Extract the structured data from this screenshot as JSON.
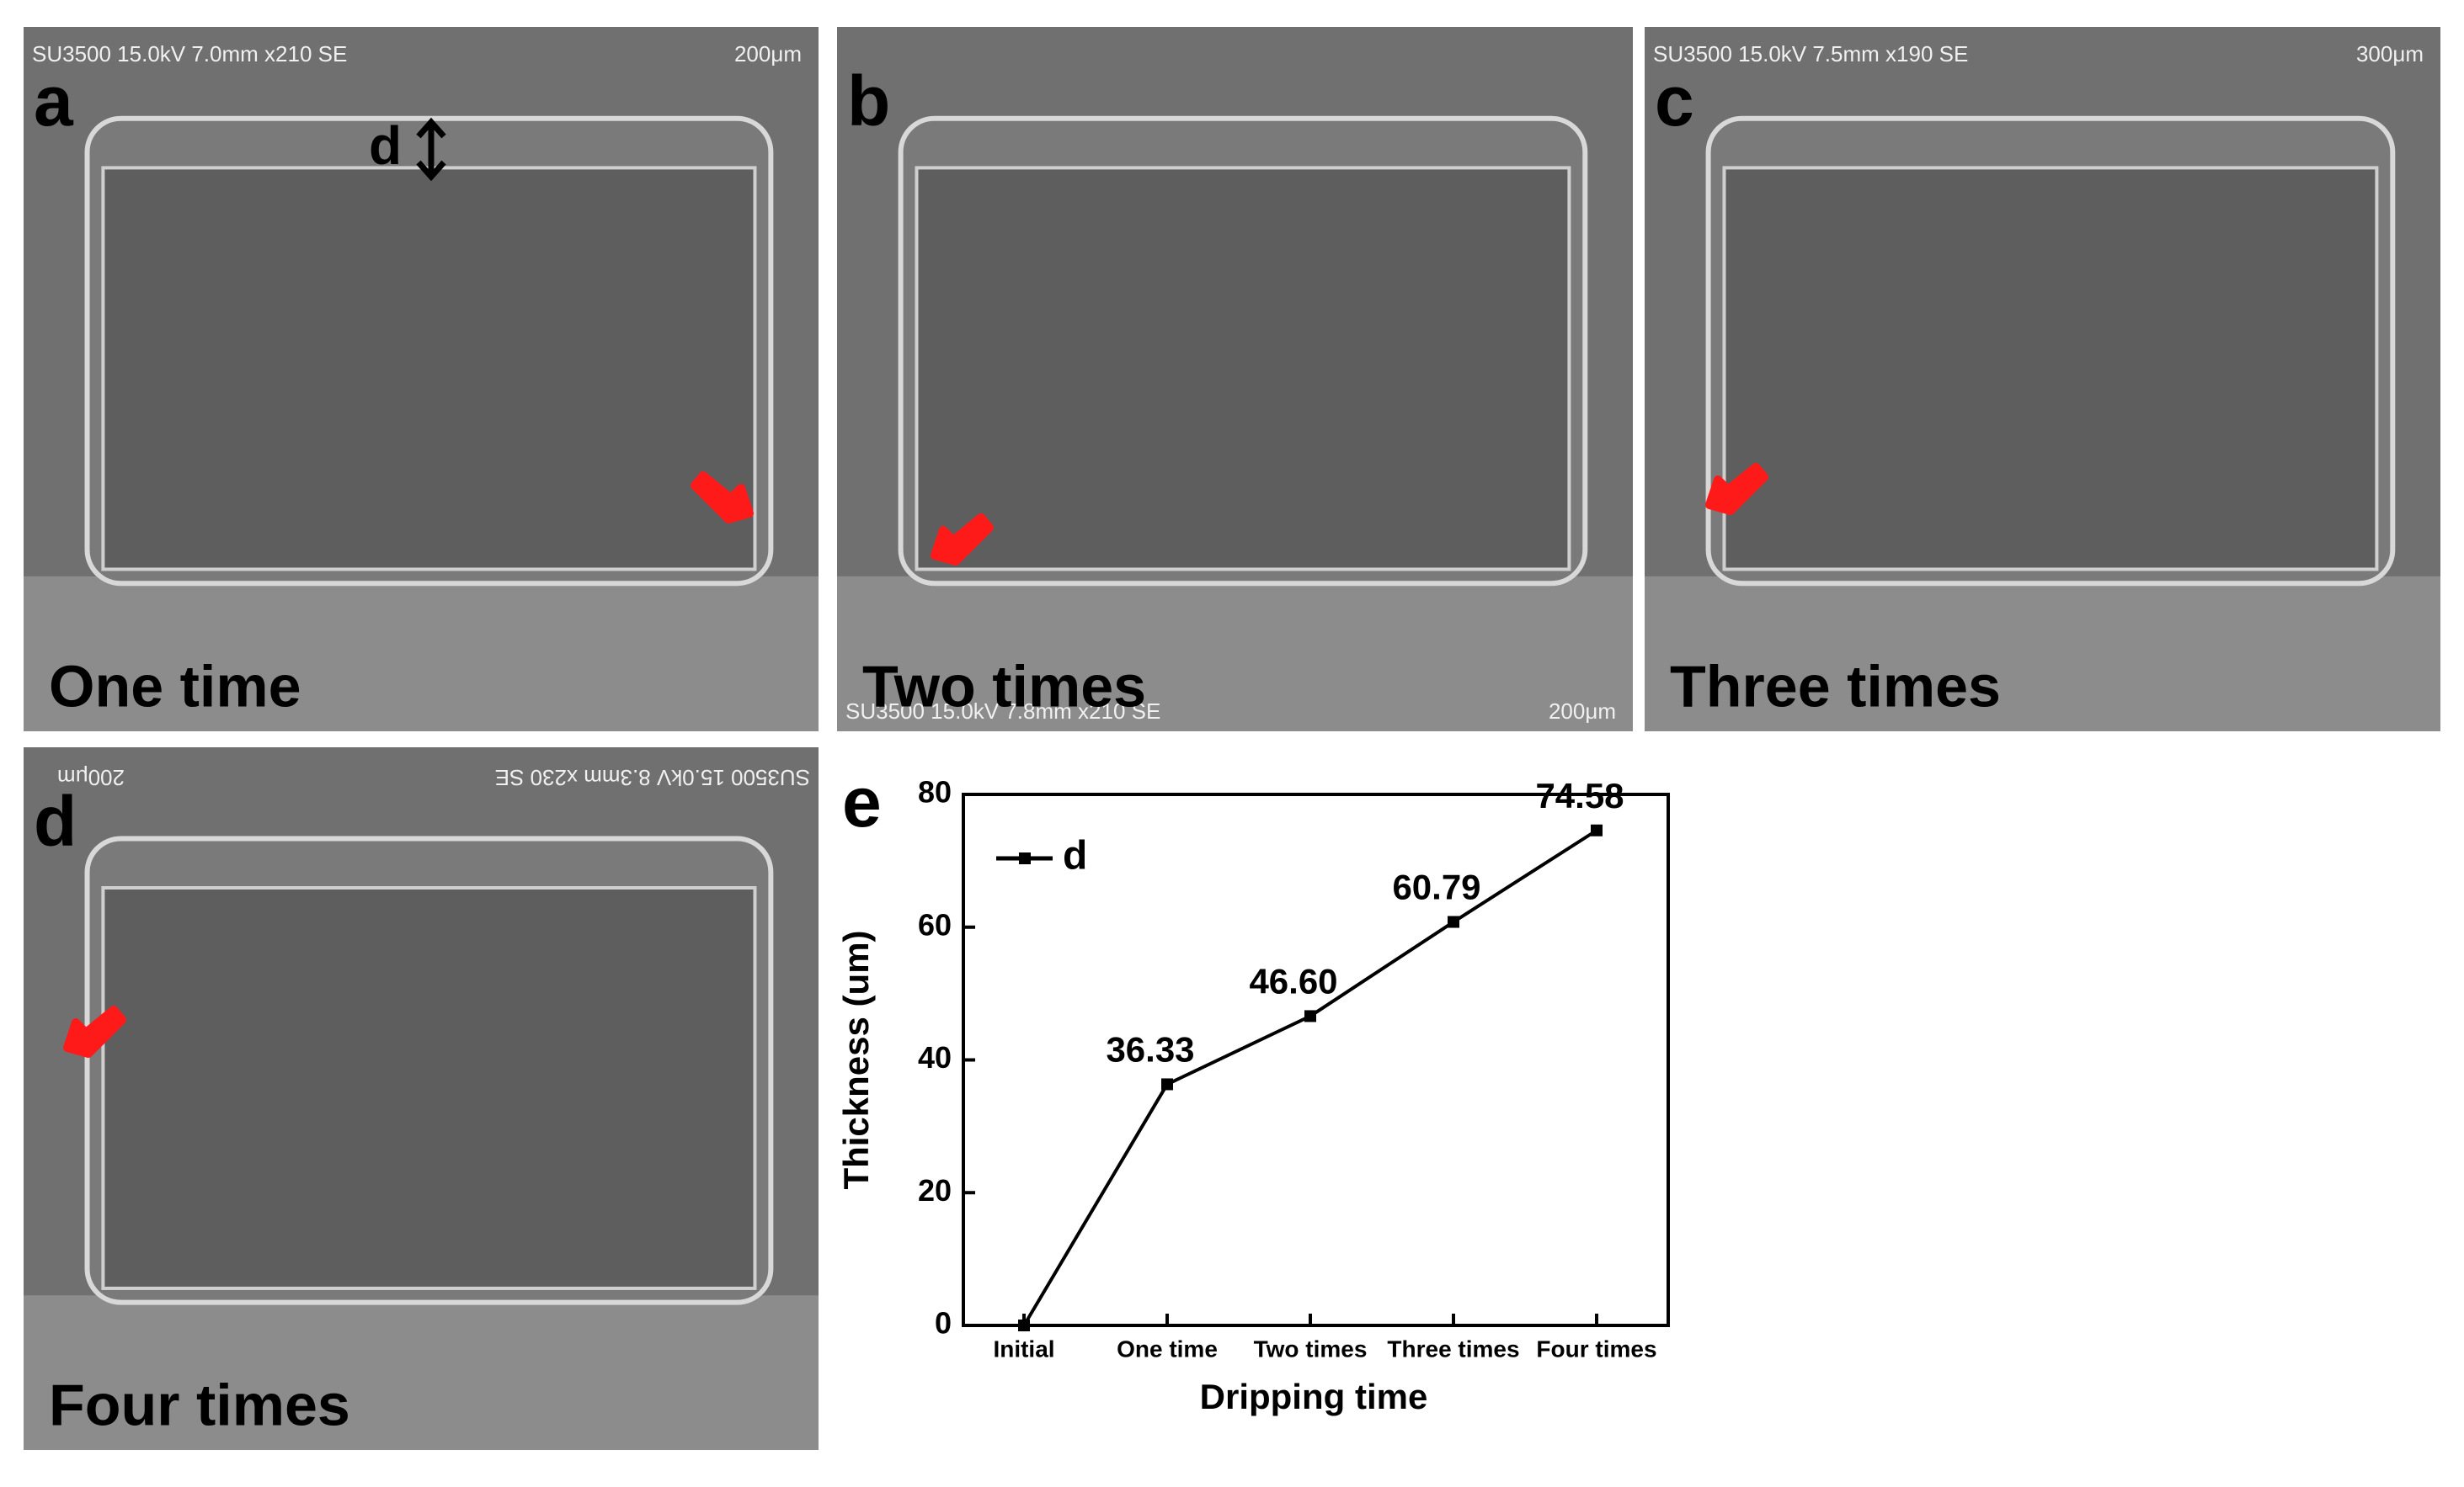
{
  "panels": [
    {
      "label": "a",
      "caption": "One time",
      "info": "SU3500 15.0kV 7.0mm x210 SE",
      "scale": "200μm",
      "annotation": "d"
    },
    {
      "label": "b",
      "caption": "Two times",
      "info": "SU3500 15.0kV 7.8mm x210 SE",
      "scale": "200μm"
    },
    {
      "label": "c",
      "caption": "Three times",
      "info": "SU3500 15.0kV 7.5mm x190 SE",
      "scale": "300μm"
    },
    {
      "label": "d",
      "caption": "Four times",
      "info": "SU3500 15.0kV 8.3mm x230 SE",
      "scale": "200μm"
    }
  ],
  "chart_data": {
    "type": "line",
    "panel_label": "e",
    "x_label": "Dripping time",
    "y_label": "Thickness (um)",
    "categories": [
      "Initial",
      "One time",
      "Two times",
      "Three times",
      "Four times"
    ],
    "series": [
      {
        "name": "d",
        "color": "#000000",
        "values": [
          0,
          36.33,
          46.6,
          60.79,
          74.58
        ],
        "value_labels": [
          null,
          "36.33",
          "46.60",
          "60.79",
          "74.58"
        ]
      }
    ],
    "ylim": [
      0,
      80
    ],
    "yticks": [
      0,
      20,
      40,
      60,
      80
    ],
    "legend": "upper-left"
  }
}
